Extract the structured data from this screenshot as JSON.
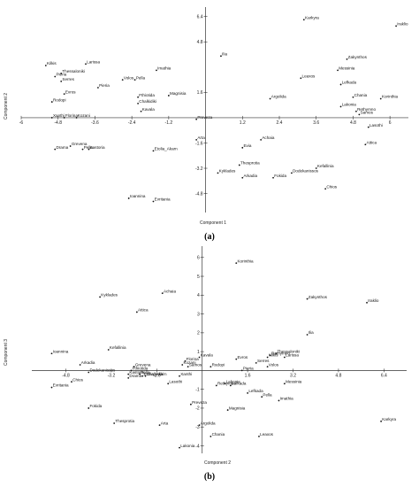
{
  "chart_data": [
    {
      "type": "scatter",
      "panel_label": "(a)",
      "xlabel": "Component 1",
      "ylabel": "Component 2",
      "xticks": [
        -6.0,
        -4.8,
        -3.6,
        -2.4,
        -1.2,
        1.2,
        2.4,
        3.6,
        4.8,
        6.0
      ],
      "yticks": [
        6.4,
        4.8,
        1.6,
        -1.6,
        -3.2,
        -4.8
      ],
      "xlim": [
        -6.0,
        6.6
      ],
      "ylim": [
        -6.0,
        7.0
      ],
      "points": [
        {
          "name": "Karkyra",
          "x": 3.2,
          "y": 6.2
        },
        {
          "name": "Iraklio",
          "x": 6.2,
          "y": 5.8
        },
        {
          "name": "Zakynthos",
          "x": 4.6,
          "y": 3.7
        },
        {
          "name": "Messinia",
          "x": 4.3,
          "y": 3.0
        },
        {
          "name": "Leaxos",
          "x": 3.1,
          "y": 2.5
        },
        {
          "name": "Lefkada",
          "x": 4.4,
          "y": 2.1
        },
        {
          "name": "Chania",
          "x": 4.8,
          "y": 1.3
        },
        {
          "name": "Korinthia",
          "x": 5.7,
          "y": 1.2
        },
        {
          "name": "Lakonia",
          "x": 4.4,
          "y": 0.7
        },
        {
          "name": "Rethymno",
          "x": 4.9,
          "y": 0.4
        },
        {
          "name": "Samos",
          "x": 5.0,
          "y": 0.2
        },
        {
          "name": "Lasothi",
          "x": 5.3,
          "y": -0.6
        },
        {
          "name": "Attica",
          "x": 5.2,
          "y": -1.7
        },
        {
          "name": "Ilia",
          "x": 0.5,
          "y": 3.9
        },
        {
          "name": "Argolida",
          "x": 2.1,
          "y": 1.2
        },
        {
          "name": "Kilkis",
          "x": -5.2,
          "y": 3.3
        },
        {
          "name": "Larissa",
          "x": -3.9,
          "y": 3.4
        },
        {
          "name": "Thessaloniki",
          "x": -4.7,
          "y": 2.8
        },
        {
          "name": "Pieria",
          "x": -4.9,
          "y": 2.6
        },
        {
          "name": "Serres",
          "x": -4.7,
          "y": 2.3
        },
        {
          "name": "Evros",
          "x": -4.6,
          "y": 1.5
        },
        {
          "name": "Pieria",
          "x": -3.5,
          "y": 1.9
        },
        {
          "name": "Rodopi",
          "x": -5.0,
          "y": 1.0
        },
        {
          "name": "Xanthi",
          "x": -5.0,
          "y": 0.0
        },
        {
          "name": "Florina",
          "x": -4.6,
          "y": 0.0
        },
        {
          "name": "Kozani",
          "x": -4.2,
          "y": 0.0
        },
        {
          "name": "Grevena",
          "x": -4.4,
          "y": -1.8
        },
        {
          "name": "Drama",
          "x": -4.9,
          "y": -2.0
        },
        {
          "name": "Pella",
          "x": -4.0,
          "y": -2.0
        },
        {
          "name": "Kastoria",
          "x": -3.8,
          "y": -2.0
        },
        {
          "name": "Imathia",
          "x": -1.6,
          "y": 3.0
        },
        {
          "name": "Volos",
          "x": -2.7,
          "y": 2.4
        },
        {
          "name": "Pella",
          "x": -2.3,
          "y": 2.4
        },
        {
          "name": "Magnisia",
          "x": -1.2,
          "y": 1.4
        },
        {
          "name": "Fthiotida",
          "x": -2.2,
          "y": 1.3
        },
        {
          "name": "Chalkidiki",
          "x": -2.2,
          "y": 0.9
        },
        {
          "name": "Kavala",
          "x": -2.1,
          "y": 0.4
        },
        {
          "name": "Preveza",
          "x": -0.3,
          "y": -0.1
        },
        {
          "name": "Arta",
          "x": -0.3,
          "y": -1.4
        },
        {
          "name": "Achaia",
          "x": 1.8,
          "y": -1.4
        },
        {
          "name": "Evia",
          "x": 1.2,
          "y": -1.9
        },
        {
          "name": "Etolia_Akarn",
          "x": -1.7,
          "y": -2.1
        },
        {
          "name": "Thesprotia",
          "x": 1.1,
          "y": -3.0
        },
        {
          "name": "Kefallinia",
          "x": 3.6,
          "y": -3.2
        },
        {
          "name": "Dodekanissos",
          "x": 2.8,
          "y": -3.5
        },
        {
          "name": "Kyklades",
          "x": 0.4,
          "y": -3.5
        },
        {
          "name": "Arkadia",
          "x": 1.2,
          "y": -3.8
        },
        {
          "name": "Fokida",
          "x": 2.2,
          "y": -3.8
        },
        {
          "name": "Chios",
          "x": 3.9,
          "y": -4.5
        },
        {
          "name": "Ioannina",
          "x": -2.5,
          "y": -5.1
        },
        {
          "name": "Evritania",
          "x": -1.7,
          "y": -5.3
        }
      ]
    },
    {
      "type": "scatter",
      "panel_label": "(b)",
      "xlabel": "Component 2",
      "ylabel": "Component 3",
      "xticks": [
        -4.8,
        -3.2,
        -1.6,
        1.6,
        3.2,
        4.8,
        6.4
      ],
      "yticks": [
        6,
        5,
        4,
        3,
        2,
        1,
        -1,
        -2,
        -3,
        -4
      ],
      "xlim": [
        -6.0,
        7.2
      ],
      "ylim": [
        -4.4,
        6.6
      ],
      "points": [
        {
          "name": "Korinthia",
          "x": 1.2,
          "y": 5.7
        },
        {
          "name": "Achaia",
          "x": -1.4,
          "y": 4.1
        },
        {
          "name": "Kyklades",
          "x": -3.6,
          "y": 3.9
        },
        {
          "name": "Attica",
          "x": -2.3,
          "y": 3.1
        },
        {
          "name": "Zakynthos",
          "x": 3.7,
          "y": 3.8
        },
        {
          "name": "Iraklio",
          "x": 5.8,
          "y": 3.6
        },
        {
          "name": "Ilia",
          "x": 3.7,
          "y": 1.9
        },
        {
          "name": "Ioannina",
          "x": -5.3,
          "y": 0.9
        },
        {
          "name": "Kefallinia",
          "x": -3.3,
          "y": 1.1
        },
        {
          "name": "Kavala",
          "x": -0.1,
          "y": 0.7
        },
        {
          "name": "Evros",
          "x": 1.2,
          "y": 0.6
        },
        {
          "name": "Thessaloniki",
          "x": 2.6,
          "y": 0.9
        },
        {
          "name": "Kilkis",
          "x": 2.3,
          "y": 0.7
        },
        {
          "name": "Larissa",
          "x": 2.9,
          "y": 0.7
        },
        {
          "name": "Rethymno",
          "x": 2.4,
          "y": 0.8
        },
        {
          "name": "Serres",
          "x": 1.9,
          "y": 0.4
        },
        {
          "name": "Volos",
          "x": 2.3,
          "y": 0.2
        },
        {
          "name": "Rodopi",
          "x": 0.3,
          "y": 0.2
        },
        {
          "name": "Pieria",
          "x": 1.4,
          "y": 0.0
        },
        {
          "name": "Florina",
          "x": -0.6,
          "y": 0.5
        },
        {
          "name": "Samos",
          "x": -0.5,
          "y": 0.2
        },
        {
          "name": "Kozani",
          "x": -0.7,
          "y": 0.3
        },
        {
          "name": "Xanthi",
          "x": -0.8,
          "y": -0.3
        },
        {
          "name": "Arkadia",
          "x": -4.3,
          "y": 0.3
        },
        {
          "name": "Dodekanissos",
          "x": -4.0,
          "y": -0.1
        },
        {
          "name": "Grevena",
          "x": -2.4,
          "y": 0.2
        },
        {
          "name": "Fthiotida",
          "x": -2.5,
          "y": 0.0
        },
        {
          "name": "Pella",
          "x": -2.2,
          "y": -0.2
        },
        {
          "name": "Etolia_Akarn",
          "x": -2.1,
          "y": -0.3
        },
        {
          "name": "Chalkidiki",
          "x": -2.0,
          "y": -0.3
        },
        {
          "name": "Drama",
          "x": -2.6,
          "y": -0.4
        },
        {
          "name": "Kastoria",
          "x": -2.6,
          "y": -0.2
        },
        {
          "name": "Evritania",
          "x": -5.3,
          "y": -0.9
        },
        {
          "name": "Chios",
          "x": -4.6,
          "y": -0.6
        },
        {
          "name": "Lasothi",
          "x": -1.2,
          "y": -0.7
        },
        {
          "name": "Rethymno",
          "x": 0.5,
          "y": -0.8
        },
        {
          "name": "Lakonia",
          "x": 0.8,
          "y": -0.7
        },
        {
          "name": "Lefkada",
          "x": 1.0,
          "y": -0.8
        },
        {
          "name": "Lefkada",
          "x": 1.6,
          "y": -1.2
        },
        {
          "name": "Messinia",
          "x": 2.9,
          "y": -0.7
        },
        {
          "name": "Pella",
          "x": 2.1,
          "y": -1.4
        },
        {
          "name": "Imathia",
          "x": 2.7,
          "y": -1.6
        },
        {
          "name": "Preveza",
          "x": -0.4,
          "y": -1.8
        },
        {
          "name": "Magnisia",
          "x": 0.9,
          "y": -2.1
        },
        {
          "name": "Fokida",
          "x": -4.0,
          "y": -2.0
        },
        {
          "name": "Thesprotia",
          "x": -3.1,
          "y": -2.8
        },
        {
          "name": "Arta",
          "x": -1.5,
          "y": -2.9
        },
        {
          "name": "Argolida",
          "x": -0.1,
          "y": -2.9
        },
        {
          "name": "Chania",
          "x": 0.3,
          "y": -3.5
        },
        {
          "name": "Leaxos",
          "x": 2.0,
          "y": -3.5
        },
        {
          "name": "Lakonia",
          "x": -0.8,
          "y": -4.1
        },
        {
          "name": "Karkyra",
          "x": 6.3,
          "y": -2.7
        }
      ]
    }
  ]
}
